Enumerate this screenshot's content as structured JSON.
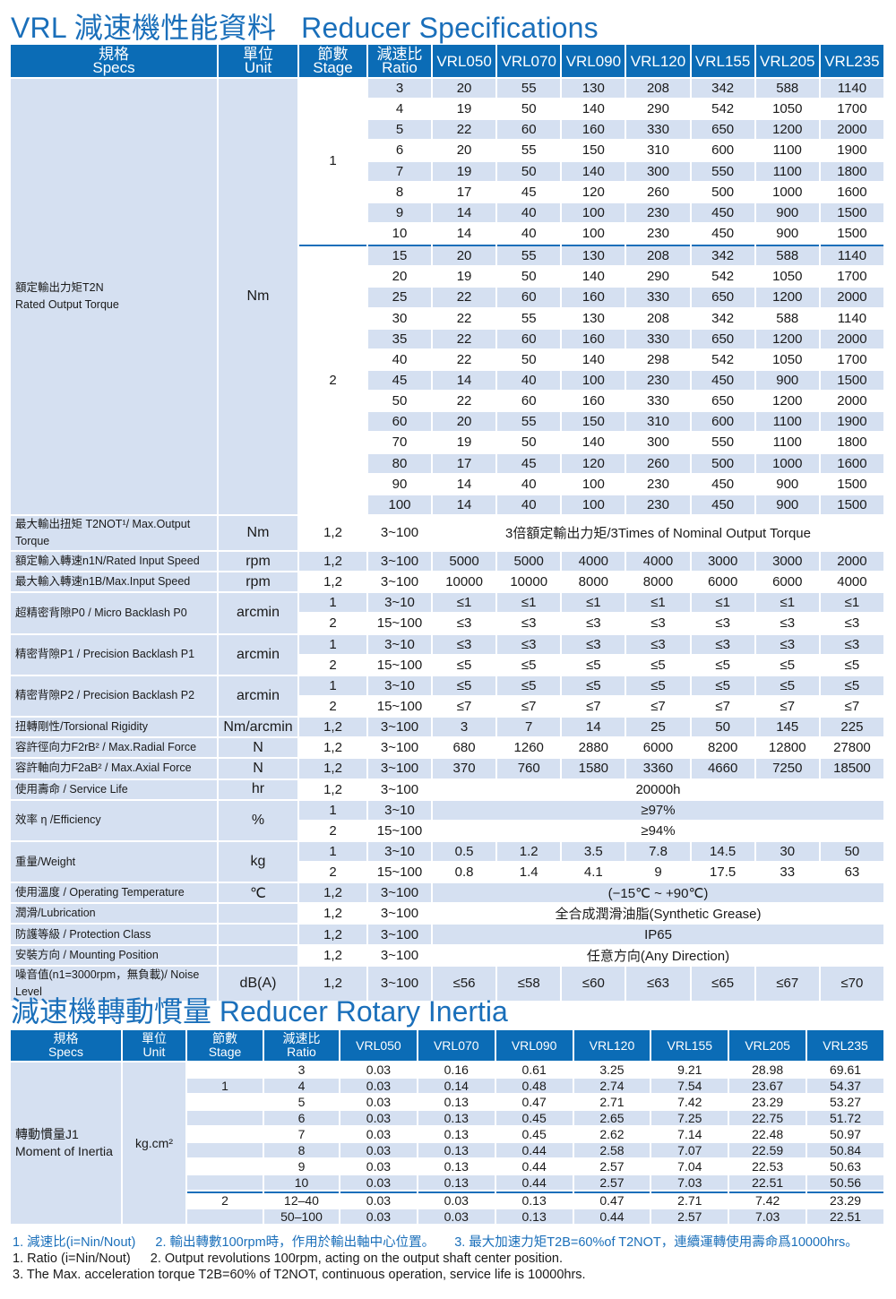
{
  "title": {
    "zh": "VRL 減速機性能資料",
    "en": "Reducer Specifications"
  },
  "header": {
    "spec_zh": "規格",
    "spec_en": "Specs",
    "unit_zh": "單位",
    "unit_en": "Unit",
    "stage_zh": "節數",
    "stage_en": "Stage",
    "ratio_zh": "減速比",
    "ratio_en": "Ratio",
    "models": [
      "VRL050",
      "VRL070",
      "VRL090",
      "VRL120",
      "VRL155",
      "VRL205",
      "VRL235"
    ]
  },
  "colors": {
    "accent": "#1a6fba",
    "header_bg": "#0b6cb6",
    "row_tint": "#d5e0f1"
  },
  "specs": {
    "groups": [
      {
        "label": "額定輸出力矩T2N",
        "label_en": "Rated Output Torque",
        "unit": "Nm",
        "stages": [
          {
            "stage": "1",
            "rows": [
              {
                "ratio": "3",
                "values": [
                  "20",
                  "55",
                  "130",
                  "208",
                  "342",
                  "588",
                  "1140"
                ]
              },
              {
                "ratio": "4",
                "values": [
                  "19",
                  "50",
                  "140",
                  "290",
                  "542",
                  "1050",
                  "1700"
                ]
              },
              {
                "ratio": "5",
                "values": [
                  "22",
                  "60",
                  "160",
                  "330",
                  "650",
                  "1200",
                  "2000"
                ]
              },
              {
                "ratio": "6",
                "values": [
                  "20",
                  "55",
                  "150",
                  "310",
                  "600",
                  "1100",
                  "1900"
                ]
              },
              {
                "ratio": "7",
                "values": [
                  "19",
                  "50",
                  "140",
                  "300",
                  "550",
                  "1100",
                  "1800"
                ]
              },
              {
                "ratio": "8",
                "values": [
                  "17",
                  "45",
                  "120",
                  "260",
                  "500",
                  "1000",
                  "1600"
                ]
              },
              {
                "ratio": "9",
                "values": [
                  "14",
                  "40",
                  "100",
                  "230",
                  "450",
                  "900",
                  "1500"
                ]
              },
              {
                "ratio": "10",
                "values": [
                  "14",
                  "40",
                  "100",
                  "230",
                  "450",
                  "900",
                  "1500"
                ]
              }
            ]
          },
          {
            "stage": "2",
            "rows": [
              {
                "ratio": "15",
                "values": [
                  "20",
                  "55",
                  "130",
                  "208",
                  "342",
                  "588",
                  "1140"
                ]
              },
              {
                "ratio": "20",
                "values": [
                  "19",
                  "50",
                  "140",
                  "290",
                  "542",
                  "1050",
                  "1700"
                ]
              },
              {
                "ratio": "25",
                "values": [
                  "22",
                  "60",
                  "160",
                  "330",
                  "650",
                  "1200",
                  "2000"
                ]
              },
              {
                "ratio": "30",
                "values": [
                  "22",
                  "55",
                  "130",
                  "208",
                  "342",
                  "588",
                  "1140"
                ]
              },
              {
                "ratio": "35",
                "values": [
                  "22",
                  "60",
                  "160",
                  "330",
                  "650",
                  "1200",
                  "2000"
                ]
              },
              {
                "ratio": "40",
                "values": [
                  "22",
                  "50",
                  "140",
                  "298",
                  "542",
                  "1050",
                  "1700"
                ]
              },
              {
                "ratio": "45",
                "values": [
                  "14",
                  "40",
                  "100",
                  "230",
                  "450",
                  "900",
                  "1500"
                ]
              },
              {
                "ratio": "50",
                "values": [
                  "22",
                  "60",
                  "160",
                  "330",
                  "650",
                  "1200",
                  "2000"
                ]
              },
              {
                "ratio": "60",
                "values": [
                  "20",
                  "55",
                  "150",
                  "310",
                  "600",
                  "1100",
                  "1900"
                ]
              },
              {
                "ratio": "70",
                "values": [
                  "19",
                  "50",
                  "140",
                  "300",
                  "550",
                  "1100",
                  "1800"
                ]
              },
              {
                "ratio": "80",
                "values": [
                  "17",
                  "45",
                  "120",
                  "260",
                  "500",
                  "1000",
                  "1600"
                ]
              },
              {
                "ratio": "90",
                "values": [
                  "14",
                  "40",
                  "100",
                  "230",
                  "450",
                  "900",
                  "1500"
                ]
              },
              {
                "ratio": "100",
                "values": [
                  "14",
                  "40",
                  "100",
                  "230",
                  "450",
                  "900",
                  "1500"
                ]
              }
            ]
          }
        ]
      },
      {
        "label": "最大輸出扭矩 T2NOT¹/ Max.Output Torque",
        "unit": "Nm",
        "stages": [
          {
            "stage": "1,2",
            "rows": [
              {
                "ratio": "3~100",
                "span": "3倍額定輸出力矩/3Times of Nominal Output Torque"
              }
            ]
          }
        ]
      },
      {
        "label": "額定輸入轉速n1N/Rated Input Speed",
        "unit": "rpm",
        "stages": [
          {
            "stage": "1,2",
            "rows": [
              {
                "ratio": "3~100",
                "values": [
                  "5000",
                  "5000",
                  "4000",
                  "4000",
                  "3000",
                  "3000",
                  "2000"
                ]
              }
            ]
          }
        ]
      },
      {
        "label": "最大輸入轉速n1B/Max.Input Speed",
        "unit": "rpm",
        "stages": [
          {
            "stage": "1,2",
            "rows": [
              {
                "ratio": "3~100",
                "values": [
                  "10000",
                  "10000",
                  "8000",
                  "8000",
                  "6000",
                  "6000",
                  "4000"
                ]
              }
            ]
          }
        ]
      },
      {
        "label": "超精密背隙P0 / Micro Backlash P0",
        "unit": "arcmin",
        "stages": [
          {
            "stage": "1",
            "rows": [
              {
                "ratio": "3~10",
                "values": [
                  "≤1",
                  "≤1",
                  "≤1",
                  "≤1",
                  "≤1",
                  "≤1",
                  "≤1"
                ]
              }
            ]
          },
          {
            "stage": "2",
            "rows": [
              {
                "ratio": "15~100",
                "values": [
                  "≤3",
                  "≤3",
                  "≤3",
                  "≤3",
                  "≤3",
                  "≤3",
                  "≤3"
                ]
              }
            ]
          }
        ]
      },
      {
        "label": "精密背隙P1 / Precision Backlash P1",
        "unit": "arcmin",
        "stages": [
          {
            "stage": "1",
            "rows": [
              {
                "ratio": "3~10",
                "values": [
                  "≤3",
                  "≤3",
                  "≤3",
                  "≤3",
                  "≤3",
                  "≤3",
                  "≤3"
                ]
              }
            ]
          },
          {
            "stage": "2",
            "rows": [
              {
                "ratio": "15~100",
                "values": [
                  "≤5",
                  "≤5",
                  "≤5",
                  "≤5",
                  "≤5",
                  "≤5",
                  "≤5"
                ]
              }
            ]
          }
        ]
      },
      {
        "label": "精密背隙P2 / Precision Backlash P2",
        "unit": "arcmin",
        "stages": [
          {
            "stage": "1",
            "rows": [
              {
                "ratio": "3~10",
                "values": [
                  "≤5",
                  "≤5",
                  "≤5",
                  "≤5",
                  "≤5",
                  "≤5",
                  "≤5"
                ]
              }
            ]
          },
          {
            "stage": "2",
            "rows": [
              {
                "ratio": "15~100",
                "values": [
                  "≤7",
                  "≤7",
                  "≤7",
                  "≤7",
                  "≤7",
                  "≤7",
                  "≤7"
                ]
              }
            ]
          }
        ]
      },
      {
        "label": "扭轉剛性/Torsional Rigidity",
        "unit": "Nm/arcmin",
        "stages": [
          {
            "stage": "1,2",
            "rows": [
              {
                "ratio": "3~100",
                "values": [
                  "3",
                  "7",
                  "14",
                  "25",
                  "50",
                  "145",
                  "225"
                ]
              }
            ]
          }
        ]
      },
      {
        "label": "容許徑向力F2rB² / Max.Radial Force",
        "unit": "N",
        "stages": [
          {
            "stage": "1,2",
            "rows": [
              {
                "ratio": "3~100",
                "values": [
                  "680",
                  "1260",
                  "2880",
                  "6000",
                  "8200",
                  "12800",
                  "27800"
                ]
              }
            ]
          }
        ]
      },
      {
        "label": "容許軸向力F2aB² / Max.Axial Force",
        "unit": "N",
        "stages": [
          {
            "stage": "1,2",
            "rows": [
              {
                "ratio": "3~100",
                "values": [
                  "370",
                  "760",
                  "1580",
                  "3360",
                  "4660",
                  "7250",
                  "18500"
                ]
              }
            ]
          }
        ]
      },
      {
        "label": "使用壽命 / Service Life",
        "unit": "hr",
        "stages": [
          {
            "stage": "1,2",
            "rows": [
              {
                "ratio": "3~100",
                "span": "20000h"
              }
            ]
          }
        ]
      },
      {
        "label": "效率 η /Efficiency",
        "unit": "%",
        "stages": [
          {
            "stage": "1",
            "rows": [
              {
                "ratio": "3~10",
                "span": "≥97%"
              }
            ]
          },
          {
            "stage": "2",
            "rows": [
              {
                "ratio": "15~100",
                "span": "≥94%"
              }
            ]
          }
        ]
      },
      {
        "label": "重量/Weight",
        "unit": "kg",
        "stages": [
          {
            "stage": "1",
            "rows": [
              {
                "ratio": "3~10",
                "values": [
                  "0.5",
                  "1.2",
                  "3.5",
                  "7.8",
                  "14.5",
                  "30",
                  "50"
                ]
              }
            ]
          },
          {
            "stage": "2",
            "rows": [
              {
                "ratio": "15~100",
                "values": [
                  "0.8",
                  "1.4",
                  "4.1",
                  "9",
                  "17.5",
                  "33",
                  "63"
                ]
              }
            ]
          }
        ]
      },
      {
        "label": "使用溫度 / Operating Temperature",
        "unit": "℃",
        "stages": [
          {
            "stage": "1,2",
            "rows": [
              {
                "ratio": "3~100",
                "span": "(−15℃ ~ +90℃)"
              }
            ]
          }
        ]
      },
      {
        "label": "潤滑/Lubrication",
        "unit": "",
        "stages": [
          {
            "stage": "1,2",
            "rows": [
              {
                "ratio": "3~100",
                "span": "全合成潤滑油脂(Synthetic Grease)"
              }
            ]
          }
        ]
      },
      {
        "label": "防護等級 / Protection Class",
        "unit": "",
        "stages": [
          {
            "stage": "1,2",
            "rows": [
              {
                "ratio": "3~100",
                "span": "IP65"
              }
            ]
          }
        ]
      },
      {
        "label": "安裝方向 / Mounting Position",
        "unit": "",
        "stages": [
          {
            "stage": "1,2",
            "rows": [
              {
                "ratio": "3~100",
                "span": "任意方向(Any Direction)"
              }
            ]
          }
        ]
      },
      {
        "label": "噪音值(n1=3000rpm，無負載)/ Noise Level",
        "unit": "dB(A)",
        "stages": [
          {
            "stage": "1,2",
            "rows": [
              {
                "ratio": "3~100",
                "values": [
                  "≤56",
                  "≤58",
                  "≤60",
                  "≤63",
                  "≤65",
                  "≤67",
                  "≤70"
                ]
              }
            ]
          }
        ]
      }
    ]
  },
  "inertia": {
    "title": "減速機轉動慣量 Reducer Rotary Inertia",
    "label": "轉動慣量J1",
    "label_en": "Moment of Inertia",
    "unit": "kg.cm²",
    "stages": [
      {
        "stage": "1",
        "rows": [
          {
            "ratio": "3",
            "values": [
              "0.03",
              "0.16",
              "0.61",
              "3.25",
              "9.21",
              "28.98",
              "69.61"
            ]
          },
          {
            "ratio": "4",
            "values": [
              "0.03",
              "0.14",
              "0.48",
              "2.74",
              "7.54",
              "23.67",
              "54.37"
            ]
          },
          {
            "ratio": "5",
            "values": [
              "0.03",
              "0.13",
              "0.47",
              "2.71",
              "7.42",
              "23.29",
              "53.27"
            ]
          },
          {
            "ratio": "6",
            "values": [
              "0.03",
              "0.13",
              "0.45",
              "2.65",
              "7.25",
              "22.75",
              "51.72"
            ]
          },
          {
            "ratio": "7",
            "values": [
              "0.03",
              "0.13",
              "0.45",
              "2.62",
              "7.14",
              "22.48",
              "50.97"
            ]
          },
          {
            "ratio": "8",
            "values": [
              "0.03",
              "0.13",
              "0.44",
              "2.58",
              "7.07",
              "22.59",
              "50.84"
            ]
          },
          {
            "ratio": "9",
            "values": [
              "0.03",
              "0.13",
              "0.44",
              "2.57",
              "7.04",
              "22.53",
              "50.63"
            ]
          },
          {
            "ratio": "10",
            "values": [
              "0.03",
              "0.13",
              "0.44",
              "2.57",
              "7.03",
              "22.51",
              "50.56"
            ]
          }
        ]
      },
      {
        "stage": "2",
        "rows": [
          {
            "ratio": "12–40",
            "values": [
              "0.03",
              "0.03",
              "0.13",
              "0.47",
              "2.71",
              "7.42",
              "23.29"
            ]
          },
          {
            "ratio": "50–100",
            "values": [
              "0.03",
              "0.03",
              "0.13",
              "0.44",
              "2.57",
              "7.03",
              "22.51"
            ]
          }
        ]
      }
    ]
  },
  "notes": {
    "zh": [
      "1. 減速比(i=Nin/Nout)",
      "2. 輸出轉數100rpm時，作用於輸出軸中心位置。",
      "3. 最大加速力矩T2B=60%of T2NOT，連續運轉使用壽命爲10000hrs。"
    ],
    "en1": [
      "1. Ratio (i=Nin/Nout)",
      "2. Output revolutions 100rpm, acting on the output shaft center position."
    ],
    "en2": "3. The Max. acceleration torque T2B=60% of T2NOT, continuous operation, service life is 10000hrs."
  }
}
